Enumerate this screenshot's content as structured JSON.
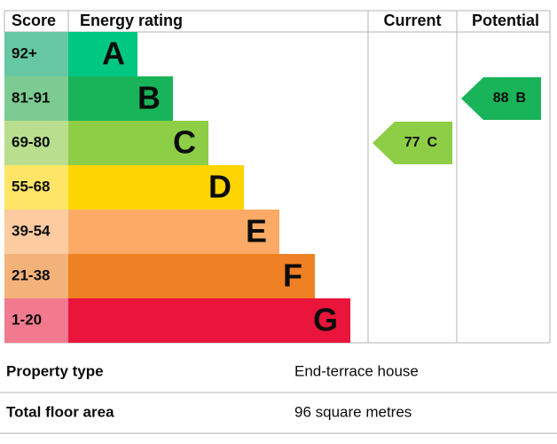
{
  "header": {
    "score": "Score",
    "rating": "Energy rating",
    "current": "Current",
    "potential": "Potential"
  },
  "bands": [
    {
      "score": "92+",
      "letter": "A",
      "color": "#00c781",
      "light": "#66c8a3"
    },
    {
      "score": "81-91",
      "letter": "B",
      "color": "#19b459",
      "light": "#7ccb93"
    },
    {
      "score": "69-80",
      "letter": "C",
      "color": "#8dce46",
      "light": "#b9df8e"
    },
    {
      "score": "55-68",
      "letter": "D",
      "color": "#ffd500",
      "light": "#ffe566"
    },
    {
      "score": "39-54",
      "letter": "E",
      "color": "#fcaa65",
      "light": "#fdcba0"
    },
    {
      "score": "21-38",
      "letter": "F",
      "color": "#ef8023",
      "light": "#f4b27b"
    },
    {
      "score": "1-20",
      "letter": "G",
      "color": "#e9153b",
      "light": "#f17a8f"
    }
  ],
  "current": {
    "value": 77,
    "letter": "C"
  },
  "potential": {
    "value": 88,
    "letter": "B"
  },
  "details": [
    {
      "label": "Property type",
      "value": "End-terrace house"
    },
    {
      "label": "Total floor area",
      "value": "96 square metres"
    }
  ]
}
